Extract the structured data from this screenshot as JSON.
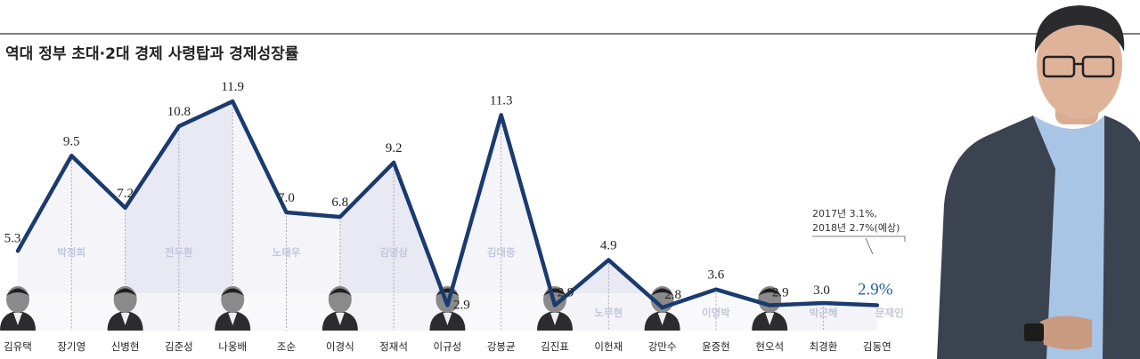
{
  "chart_data": {
    "type": "line",
    "title": "역대 정부 초대·2대 경제 사령탑과 경제성장률",
    "categories": [
      "김유택",
      "장기영",
      "신병현",
      "김준성",
      "나웅배",
      "조순",
      "이경식",
      "정재석",
      "이규성",
      "강봉균",
      "김진표",
      "이헌재",
      "강만수",
      "윤증현",
      "현오석",
      "최경환",
      "김동연"
    ],
    "series": [
      {
        "values": [
          5.3,
          9.5,
          7.2,
          10.8,
          11.9,
          7.0,
          6.8,
          9.2,
          2.9,
          11.3,
          2.9,
          4.9,
          2.8,
          3.6,
          2.9,
          3.0,
          2.9
        ]
      }
    ],
    "value_labels": [
      "5.3",
      "9.5",
      "7.2",
      "10.8",
      "11.9",
      "7.0",
      "6.8",
      "9.2",
      "2.9",
      "11.3",
      "2.9",
      "4.9",
      "2.8",
      "3.6",
      "2.9",
      "3.0",
      "2.9%"
    ],
    "eras": [
      {
        "name": "박정희",
        "from": 0,
        "to": 2
      },
      {
        "name": "전두환",
        "from": 2,
        "to": 4
      },
      {
        "name": "노태우",
        "from": 4,
        "to": 6
      },
      {
        "name": "김영삼",
        "from": 6,
        "to": 8
      },
      {
        "name": "김대중",
        "from": 8,
        "to": 10
      },
      {
        "name": "노무현",
        "from": 10,
        "to": 12
      },
      {
        "name": "이명박",
        "from": 12,
        "to": 14
      },
      {
        "name": "박근혜",
        "from": 14,
        "to": 16
      },
      {
        "name": "문재인",
        "from": 16,
        "to": 16
      }
    ],
    "annotation": {
      "line1": "2017년 3.1%,",
      "line2": "2018년 2.7%(예상)"
    },
    "ylim": [
      0,
      12
    ],
    "colors": {
      "line": "#1b3b6f",
      "highlight": "#1f5fa8",
      "area": "#eeeef6",
      "era_label": "#c3c7da"
    }
  }
}
